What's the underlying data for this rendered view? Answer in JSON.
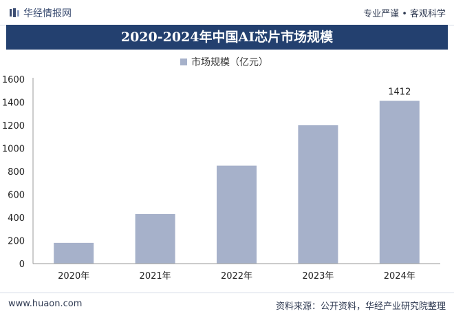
{
  "header": {
    "logo_text": "华经情报网",
    "tagline": "专业严谨 • 客观科学"
  },
  "footer": {
    "website": "www.huaon.com",
    "source": "资料来源：公开资料，华经产业研究院整理"
  },
  "colors": {
    "title_band": "#23406f",
    "bar": "#a6b1ca"
  },
  "chart_data": {
    "type": "bar",
    "title": "2020-2024年中国AI芯片市场规模",
    "categories": [
      "2020年",
      "2021年",
      "2022年",
      "2023年",
      "2024年"
    ],
    "series": [
      {
        "name": "市场规模（亿元）",
        "values": [
          180,
          430,
          850,
          1200,
          1412
        ]
      }
    ],
    "data_labels": [
      "",
      "",
      "",
      "",
      "1412"
    ],
    "ylim": [
      0,
      1600
    ],
    "yticks": [
      0,
      200,
      400,
      600,
      800,
      1000,
      1200,
      1400,
      1600
    ],
    "grid": false,
    "legend_position": "top-center",
    "xlabel": "",
    "ylabel": ""
  }
}
